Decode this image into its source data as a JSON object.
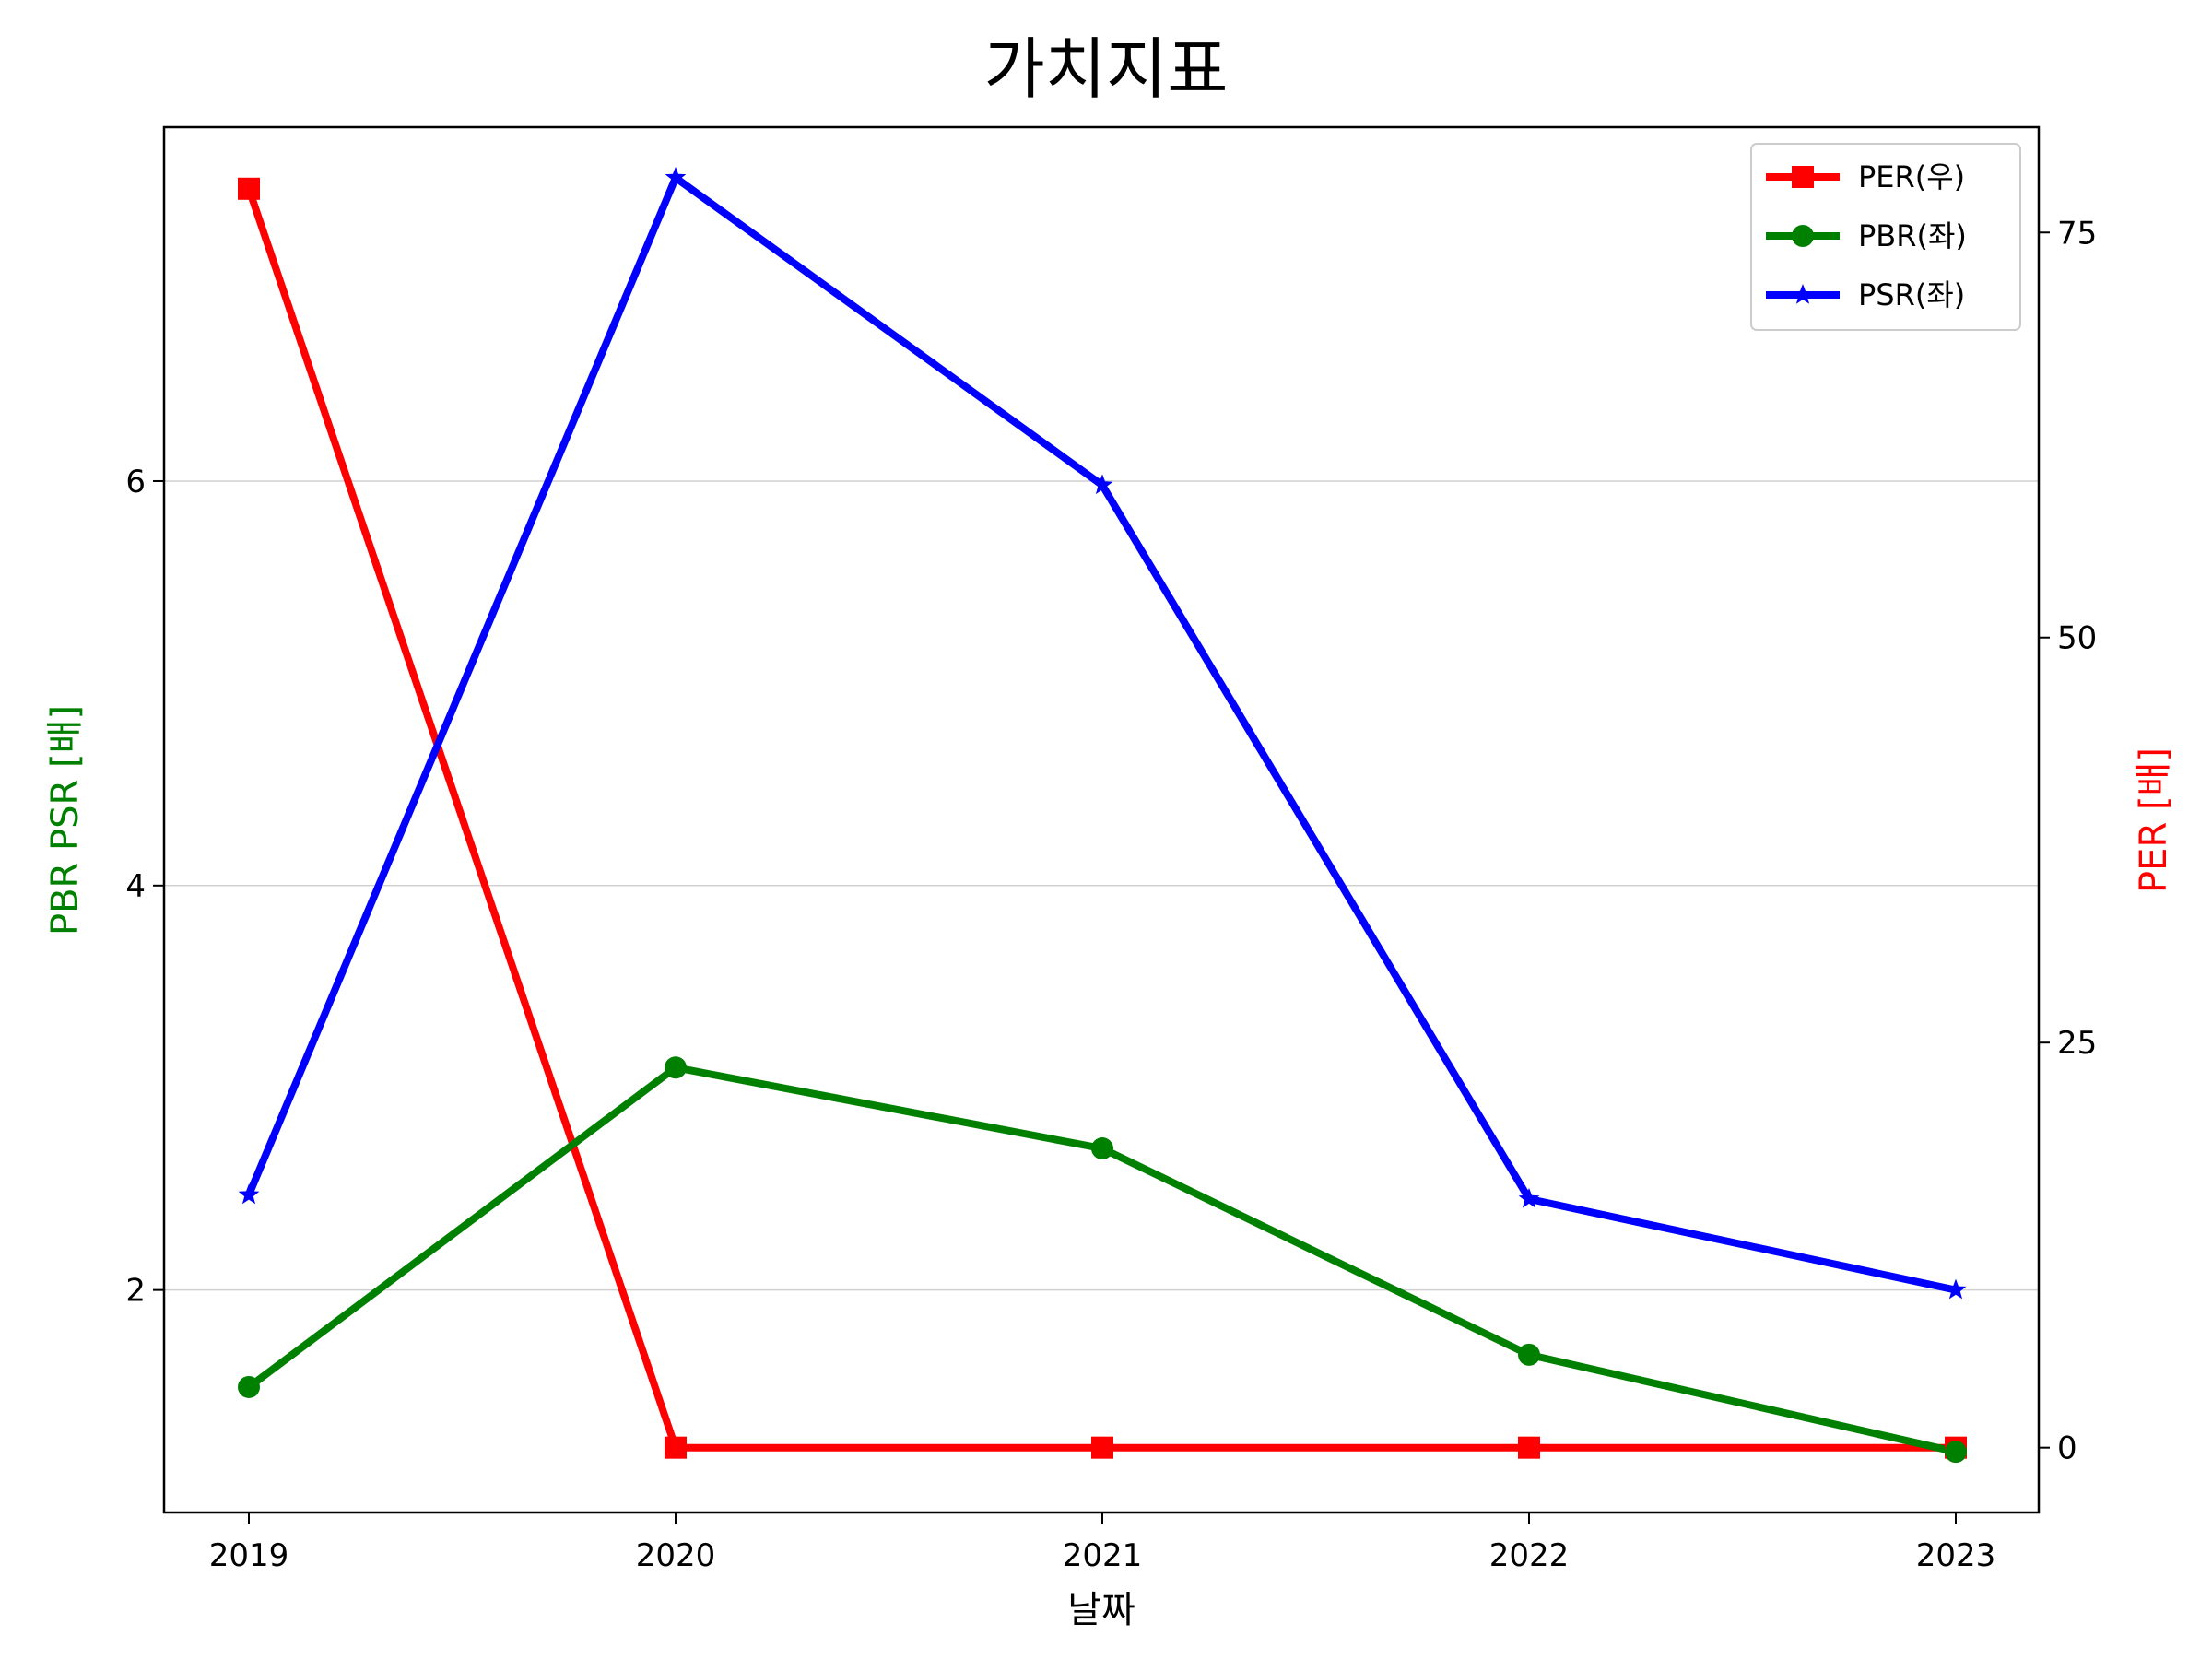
{
  "chart_data": {
    "type": "line",
    "title": "가치지표",
    "xlabel": "날짜",
    "ylabel_left": "PBR PSR [배]",
    "ylabel_right": "PER [배]",
    "ylabel_left_color": "#008000",
    "ylabel_right_color": "#ff0000",
    "x": [
      "2019",
      "2020",
      "2021",
      "2022",
      "2023"
    ],
    "ylim_left": [
      0.9,
      7.75
    ],
    "ylim_right": [
      -4,
      81.5
    ],
    "yticks_left": [
      "2",
      "4",
      "6"
    ],
    "yticks_right": [
      "0",
      "25",
      "50",
      "75"
    ],
    "grid": "horizontal (left axis)",
    "legend_position": "top-right",
    "series": [
      {
        "name": "PER(우)",
        "axis": "right",
        "color": "#ff0000",
        "marker": "square",
        "values": [
          77.7,
          0.0,
          0.0,
          0.0,
          0.0
        ]
      },
      {
        "name": "PBR(좌)",
        "axis": "left",
        "color": "#008000",
        "marker": "circle",
        "values": [
          1.52,
          3.1,
          2.7,
          1.68,
          1.2
        ]
      },
      {
        "name": "PSR(좌)",
        "axis": "left",
        "color": "#0000ff",
        "marker": "star",
        "values": [
          2.47,
          7.5,
          5.98,
          2.45,
          2.0
        ]
      }
    ]
  }
}
